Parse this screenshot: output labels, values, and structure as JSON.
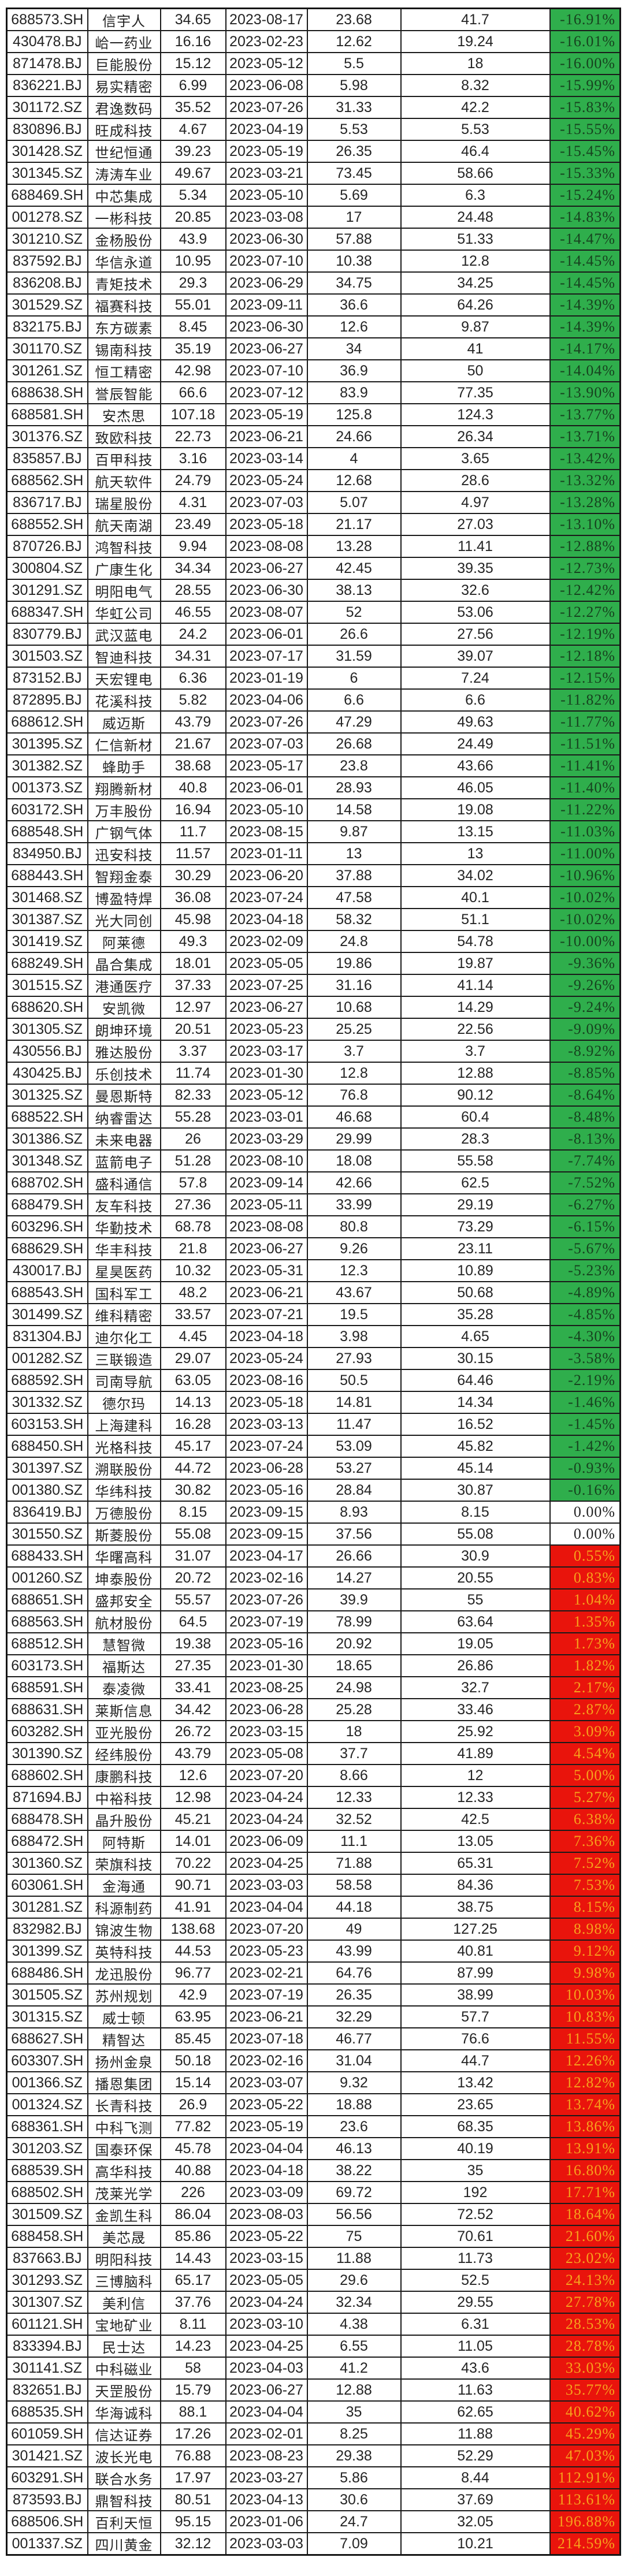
{
  "table": {
    "columns": [
      "code",
      "name",
      "price",
      "date",
      "value1",
      "value2",
      "change"
    ],
    "colors": {
      "negative_bg": "#2fae4c",
      "negative_text": "#17421f",
      "positive_bg": "#e9140c",
      "positive_text": "#f6a21c",
      "zero_bg": "#ffffff",
      "zero_text": "#242424",
      "grid": "#1a1a1a"
    },
    "rows": [
      [
        "688573.SH",
        "信宇人",
        "34.65",
        "2023-08-17",
        "23.68",
        "41.7",
        "-16.91%"
      ],
      [
        "430478.BJ",
        "峆一药业",
        "16.16",
        "2023-02-23",
        "12.62",
        "19.24",
        "-16.01%"
      ],
      [
        "871478.BJ",
        "巨能股份",
        "15.12",
        "2023-05-12",
        "5.5",
        "18",
        "-16.00%"
      ],
      [
        "836221.BJ",
        "易实精密",
        "6.99",
        "2023-06-08",
        "5.98",
        "8.32",
        "-15.99%"
      ],
      [
        "301172.SZ",
        "君逸数码",
        "35.52",
        "2023-07-26",
        "31.33",
        "42.2",
        "-15.83%"
      ],
      [
        "830896.BJ",
        "旺成科技",
        "4.67",
        "2023-04-19",
        "5.53",
        "5.53",
        "-15.55%"
      ],
      [
        "301428.SZ",
        "世纪恒通",
        "39.23",
        "2023-05-19",
        "26.35",
        "46.4",
        "-15.45%"
      ],
      [
        "301345.SZ",
        "涛涛车业",
        "49.67",
        "2023-03-21",
        "73.45",
        "58.66",
        "-15.33%"
      ],
      [
        "688469.SH",
        "中芯集成",
        "5.34",
        "2023-05-10",
        "5.69",
        "6.3",
        "-15.24%"
      ],
      [
        "001278.SZ",
        "一彬科技",
        "20.85",
        "2023-03-08",
        "17",
        "24.48",
        "-14.83%"
      ],
      [
        "301210.SZ",
        "金杨股份",
        "43.9",
        "2023-06-30",
        "57.88",
        "51.33",
        "-14.47%"
      ],
      [
        "837592.BJ",
        "华信永道",
        "10.95",
        "2023-07-10",
        "10.38",
        "12.8",
        "-14.45%"
      ],
      [
        "836208.BJ",
        "青矩技术",
        "29.3",
        "2023-06-29",
        "34.75",
        "34.25",
        "-14.45%"
      ],
      [
        "301529.SZ",
        "福赛科技",
        "55.01",
        "2023-09-11",
        "36.6",
        "64.26",
        "-14.39%"
      ],
      [
        "832175.BJ",
        "东方碳素",
        "8.45",
        "2023-06-30",
        "12.6",
        "9.87",
        "-14.39%"
      ],
      [
        "301170.SZ",
        "锡南科技",
        "35.19",
        "2023-06-27",
        "34",
        "41",
        "-14.17%"
      ],
      [
        "301261.SZ",
        "恒工精密",
        "42.98",
        "2023-07-10",
        "36.9",
        "50",
        "-14.04%"
      ],
      [
        "688638.SH",
        "誉辰智能",
        "66.6",
        "2023-07-12",
        "83.9",
        "77.35",
        "-13.90%"
      ],
      [
        "688581.SH",
        "安杰思",
        "107.18",
        "2023-05-19",
        "125.8",
        "124.3",
        "-13.77%"
      ],
      [
        "301376.SZ",
        "致欧科技",
        "22.73",
        "2023-06-21",
        "24.66",
        "26.34",
        "-13.71%"
      ],
      [
        "835857.BJ",
        "百甲科技",
        "3.16",
        "2023-03-14",
        "4",
        "3.65",
        "-13.42%"
      ],
      [
        "688562.SH",
        "航天软件",
        "24.79",
        "2023-05-24",
        "12.68",
        "28.6",
        "-13.32%"
      ],
      [
        "836717.BJ",
        "瑞星股份",
        "4.31",
        "2023-07-03",
        "5.07",
        "4.97",
        "-13.28%"
      ],
      [
        "688552.SH",
        "航天南湖",
        "23.49",
        "2023-05-18",
        "21.17",
        "27.03",
        "-13.10%"
      ],
      [
        "870726.BJ",
        "鸿智科技",
        "9.94",
        "2023-08-08",
        "13.28",
        "11.41",
        "-12.88%"
      ],
      [
        "300804.SZ",
        "广康生化",
        "34.34",
        "2023-06-27",
        "42.45",
        "39.35",
        "-12.73%"
      ],
      [
        "301291.SZ",
        "明阳电气",
        "28.55",
        "2023-06-30",
        "38.13",
        "32.6",
        "-12.42%"
      ],
      [
        "688347.SH",
        "华虹公司",
        "46.55",
        "2023-08-07",
        "52",
        "53.06",
        "-12.27%"
      ],
      [
        "830779.BJ",
        "武汉蓝电",
        "24.2",
        "2023-06-01",
        "26.6",
        "27.56",
        "-12.19%"
      ],
      [
        "301503.SZ",
        "智迪科技",
        "34.31",
        "2023-07-17",
        "31.59",
        "39.07",
        "-12.18%"
      ],
      [
        "873152.BJ",
        "天宏锂电",
        "6.36",
        "2023-01-19",
        "6",
        "7.24",
        "-12.15%"
      ],
      [
        "872895.BJ",
        "花溪科技",
        "5.82",
        "2023-04-06",
        "6.6",
        "6.6",
        "-11.82%"
      ],
      [
        "688612.SH",
        "威迈斯",
        "43.79",
        "2023-07-26",
        "47.29",
        "49.63",
        "-11.77%"
      ],
      [
        "301395.SZ",
        "仁信新材",
        "21.67",
        "2023-07-03",
        "26.68",
        "24.49",
        "-11.51%"
      ],
      [
        "301382.SZ",
        "蜂助手",
        "38.68",
        "2023-05-17",
        "23.8",
        "43.66",
        "-11.41%"
      ],
      [
        "001373.SZ",
        "翔腾新材",
        "40.8",
        "2023-06-01",
        "28.93",
        "46.05",
        "-11.40%"
      ],
      [
        "603172.SH",
        "万丰股份",
        "16.94",
        "2023-05-10",
        "14.58",
        "19.08",
        "-11.22%"
      ],
      [
        "688548.SH",
        "广钢气体",
        "11.7",
        "2023-08-15",
        "9.87",
        "13.15",
        "-11.03%"
      ],
      [
        "834950.BJ",
        "迅安科技",
        "11.57",
        "2023-01-11",
        "13",
        "13",
        "-11.00%"
      ],
      [
        "688443.SH",
        "智翔金泰",
        "30.29",
        "2023-06-20",
        "37.88",
        "34.02",
        "-10.96%"
      ],
      [
        "301468.SZ",
        "博盈特焊",
        "36.08",
        "2023-07-24",
        "47.58",
        "40.1",
        "-10.02%"
      ],
      [
        "301387.SZ",
        "光大同创",
        "45.98",
        "2023-04-18",
        "58.32",
        "51.1",
        "-10.02%"
      ],
      [
        "301419.SZ",
        "阿莱德",
        "49.3",
        "2023-02-09",
        "24.8",
        "54.78",
        "-10.00%"
      ],
      [
        "688249.SH",
        "晶合集成",
        "18.01",
        "2023-05-05",
        "19.86",
        "19.87",
        "-9.36%"
      ],
      [
        "301515.SZ",
        "港通医疗",
        "37.33",
        "2023-07-25",
        "31.16",
        "41.14",
        "-9.26%"
      ],
      [
        "688620.SH",
        "安凯微",
        "12.97",
        "2023-06-27",
        "10.68",
        "14.29",
        "-9.24%"
      ],
      [
        "301305.SZ",
        "朗坤环境",
        "20.51",
        "2023-05-23",
        "25.25",
        "22.56",
        "-9.09%"
      ],
      [
        "430556.BJ",
        "雅达股份",
        "3.37",
        "2023-03-17",
        "3.7",
        "3.7",
        "-8.92%"
      ],
      [
        "430425.BJ",
        "乐创技术",
        "11.74",
        "2023-01-30",
        "12.8",
        "12.88",
        "-8.85%"
      ],
      [
        "301325.SZ",
        "曼恩斯特",
        "82.33",
        "2023-05-12",
        "76.8",
        "90.12",
        "-8.64%"
      ],
      [
        "688522.SH",
        "纳睿雷达",
        "55.28",
        "2023-03-01",
        "46.68",
        "60.4",
        "-8.48%"
      ],
      [
        "301386.SZ",
        "未来电器",
        "26",
        "2023-03-29",
        "29.99",
        "28.3",
        "-8.13%"
      ],
      [
        "301348.SZ",
        "蓝箭电子",
        "51.28",
        "2023-08-10",
        "18.08",
        "55.58",
        "-7.74%"
      ],
      [
        "688702.SH",
        "盛科通信",
        "57.8",
        "2023-09-14",
        "42.66",
        "62.5",
        "-7.52%"
      ],
      [
        "688479.SH",
        "友车科技",
        "27.36",
        "2023-05-11",
        "33.99",
        "29.19",
        "-6.27%"
      ],
      [
        "603296.SH",
        "华勤技术",
        "68.78",
        "2023-08-08",
        "80.8",
        "73.29",
        "-6.15%"
      ],
      [
        "688629.SH",
        "华丰科技",
        "21.8",
        "2023-06-27",
        "9.26",
        "23.11",
        "-5.67%"
      ],
      [
        "430017.BJ",
        "星昊医药",
        "10.32",
        "2023-05-31",
        "12.3",
        "10.89",
        "-5.23%"
      ],
      [
        "688543.SH",
        "国科军工",
        "48.2",
        "2023-06-21",
        "43.67",
        "50.68",
        "-4.89%"
      ],
      [
        "301499.SZ",
        "维科精密",
        "33.57",
        "2023-07-21",
        "19.5",
        "35.28",
        "-4.85%"
      ],
      [
        "831304.BJ",
        "迪尔化工",
        "4.45",
        "2023-04-18",
        "3.98",
        "4.65",
        "-4.30%"
      ],
      [
        "001282.SZ",
        "三联锻造",
        "29.07",
        "2023-05-24",
        "27.93",
        "30.15",
        "-3.58%"
      ],
      [
        "688592.SH",
        "司南导航",
        "63.05",
        "2023-08-16",
        "50.5",
        "64.46",
        "-2.19%"
      ],
      [
        "301332.SZ",
        "德尔玛",
        "14.13",
        "2023-05-18",
        "14.81",
        "14.34",
        "-1.46%"
      ],
      [
        "603153.SH",
        "上海建科",
        "16.28",
        "2023-03-13",
        "11.47",
        "16.52",
        "-1.45%"
      ],
      [
        "688450.SH",
        "光格科技",
        "45.17",
        "2023-07-24",
        "53.09",
        "45.82",
        "-1.42%"
      ],
      [
        "301397.SZ",
        "溯联股份",
        "44.72",
        "2023-06-28",
        "53.27",
        "45.14",
        "-0.93%"
      ],
      [
        "001380.SZ",
        "华纬科技",
        "30.82",
        "2023-05-16",
        "28.84",
        "30.87",
        "-0.16%"
      ],
      [
        "836419.BJ",
        "万德股份",
        "8.15",
        "2023-09-15",
        "8.93",
        "8.15",
        "0.00%"
      ],
      [
        "301550.SZ",
        "斯菱股份",
        "55.08",
        "2023-09-15",
        "37.56",
        "55.08",
        "0.00%"
      ],
      [
        "688433.SH",
        "华曙高科",
        "31.07",
        "2023-04-17",
        "26.66",
        "30.9",
        "0.55%"
      ],
      [
        "001260.SZ",
        "坤泰股份",
        "20.72",
        "2023-02-16",
        "14.27",
        "20.55",
        "0.83%"
      ],
      [
        "688651.SH",
        "盛邦安全",
        "55.57",
        "2023-07-26",
        "39.9",
        "55",
        "1.04%"
      ],
      [
        "688563.SH",
        "航材股份",
        "64.5",
        "2023-07-19",
        "78.99",
        "63.64",
        "1.35%"
      ],
      [
        "688512.SH",
        "慧智微",
        "19.38",
        "2023-05-16",
        "20.92",
        "19.05",
        "1.73%"
      ],
      [
        "603173.SH",
        "福斯达",
        "27.35",
        "2023-01-30",
        "18.65",
        "26.86",
        "1.82%"
      ],
      [
        "688591.SH",
        "泰凌微",
        "33.41",
        "2023-08-25",
        "24.98",
        "32.7",
        "2.17%"
      ],
      [
        "688631.SH",
        "莱斯信息",
        "34.42",
        "2023-06-28",
        "25.28",
        "33.46",
        "2.87%"
      ],
      [
        "603282.SH",
        "亚光股份",
        "26.72",
        "2023-03-15",
        "18",
        "25.92",
        "3.09%"
      ],
      [
        "301390.SZ",
        "经纬股份",
        "43.79",
        "2023-05-08",
        "37.7",
        "41.89",
        "4.54%"
      ],
      [
        "688602.SH",
        "康鹏科技",
        "12.6",
        "2023-07-20",
        "8.66",
        "12",
        "5.00%"
      ],
      [
        "871694.BJ",
        "中裕科技",
        "12.98",
        "2023-04-24",
        "12.33",
        "12.33",
        "5.27%"
      ],
      [
        "688478.SH",
        "晶升股份",
        "45.21",
        "2023-04-24",
        "32.52",
        "42.5",
        "6.38%"
      ],
      [
        "688472.SH",
        "阿特斯",
        "14.01",
        "2023-06-09",
        "11.1",
        "13.05",
        "7.36%"
      ],
      [
        "301360.SZ",
        "荣旗科技",
        "70.22",
        "2023-04-25",
        "71.88",
        "65.31",
        "7.52%"
      ],
      [
        "603061.SH",
        "金海通",
        "90.71",
        "2023-03-03",
        "58.58",
        "84.36",
        "7.53%"
      ],
      [
        "301281.SZ",
        "科源制药",
        "41.91",
        "2023-04-04",
        "44.18",
        "38.75",
        "8.15%"
      ],
      [
        "832982.BJ",
        "锦波生物",
        "138.68",
        "2023-07-20",
        "49",
        "127.25",
        "8.98%"
      ],
      [
        "301399.SZ",
        "英特科技",
        "44.53",
        "2023-05-23",
        "43.99",
        "40.81",
        "9.12%"
      ],
      [
        "688486.SH",
        "龙迅股份",
        "96.77",
        "2023-02-21",
        "64.76",
        "87.99",
        "9.98%"
      ],
      [
        "301505.SZ",
        "苏州规划",
        "42.9",
        "2023-07-19",
        "26.35",
        "38.99",
        "10.03%"
      ],
      [
        "301315.SZ",
        "威士顿",
        "63.95",
        "2023-06-21",
        "32.29",
        "57.7",
        "10.83%"
      ],
      [
        "688627.SH",
        "精智达",
        "85.45",
        "2023-07-18",
        "46.77",
        "76.6",
        "11.55%"
      ],
      [
        "603307.SH",
        "扬州金泉",
        "50.18",
        "2023-02-16",
        "31.04",
        "44.7",
        "12.26%"
      ],
      [
        "001366.SZ",
        "播恩集团",
        "15.14",
        "2023-03-07",
        "9.32",
        "13.42",
        "12.82%"
      ],
      [
        "001324.SZ",
        "长青科技",
        "26.9",
        "2023-05-22",
        "18.88",
        "23.65",
        "13.74%"
      ],
      [
        "688361.SH",
        "中科飞测",
        "77.82",
        "2023-05-19",
        "23.6",
        "68.35",
        "13.86%"
      ],
      [
        "301203.SZ",
        "国泰环保",
        "45.78",
        "2023-04-04",
        "46.13",
        "40.19",
        "13.91%"
      ],
      [
        "688539.SH",
        "高华科技",
        "40.88",
        "2023-04-18",
        "38.22",
        "35",
        "16.80%"
      ],
      [
        "688502.SH",
        "茂莱光学",
        "226",
        "2023-03-09",
        "69.72",
        "192",
        "17.71%"
      ],
      [
        "301509.SZ",
        "金凯生科",
        "86.04",
        "2023-08-03",
        "56.56",
        "72.52",
        "18.64%"
      ],
      [
        "688458.SH",
        "美芯晟",
        "85.86",
        "2023-05-22",
        "75",
        "70.61",
        "21.60%"
      ],
      [
        "837663.BJ",
        "明阳科技",
        "14.43",
        "2023-03-15",
        "11.88",
        "11.73",
        "23.02%"
      ],
      [
        "301293.SZ",
        "三博脑科",
        "65.17",
        "2023-05-05",
        "29.6",
        "52.5",
        "24.13%"
      ],
      [
        "301307.SZ",
        "美利信",
        "37.76",
        "2023-04-24",
        "32.34",
        "29.55",
        "27.78%"
      ],
      [
        "601121.SH",
        "宝地矿业",
        "8.11",
        "2023-03-10",
        "4.38",
        "6.31",
        "28.53%"
      ],
      [
        "833394.BJ",
        "民士达",
        "14.23",
        "2023-04-25",
        "6.55",
        "11.05",
        "28.78%"
      ],
      [
        "301141.SZ",
        "中科磁业",
        "58",
        "2023-04-03",
        "41.2",
        "43.6",
        "33.03%"
      ],
      [
        "832651.BJ",
        "天罡股份",
        "15.79",
        "2023-06-27",
        "12.88",
        "11.63",
        "35.77%"
      ],
      [
        "688535.SH",
        "华海诚科",
        "88.1",
        "2023-04-04",
        "35",
        "62.65",
        "40.62%"
      ],
      [
        "601059.SH",
        "信达证券",
        "17.26",
        "2023-02-01",
        "8.25",
        "11.88",
        "45.29%"
      ],
      [
        "301421.SZ",
        "波长光电",
        "76.88",
        "2023-08-23",
        "29.38",
        "52.29",
        "47.03%"
      ],
      [
        "603291.SH",
        "联合水务",
        "17.97",
        "2023-03-27",
        "5.86",
        "8.44",
        "112.91%"
      ],
      [
        "873593.BJ",
        "鼎智科技",
        "80.51",
        "2023-04-13",
        "30.6",
        "37.69",
        "113.61%"
      ],
      [
        "688506.SH",
        "百利天恒",
        "95.15",
        "2023-01-06",
        "24.7",
        "32.05",
        "196.88%"
      ],
      [
        "001337.SZ",
        "四川黄金",
        "32.12",
        "2023-03-03",
        "7.09",
        "10.21",
        "214.59%"
      ]
    ]
  }
}
